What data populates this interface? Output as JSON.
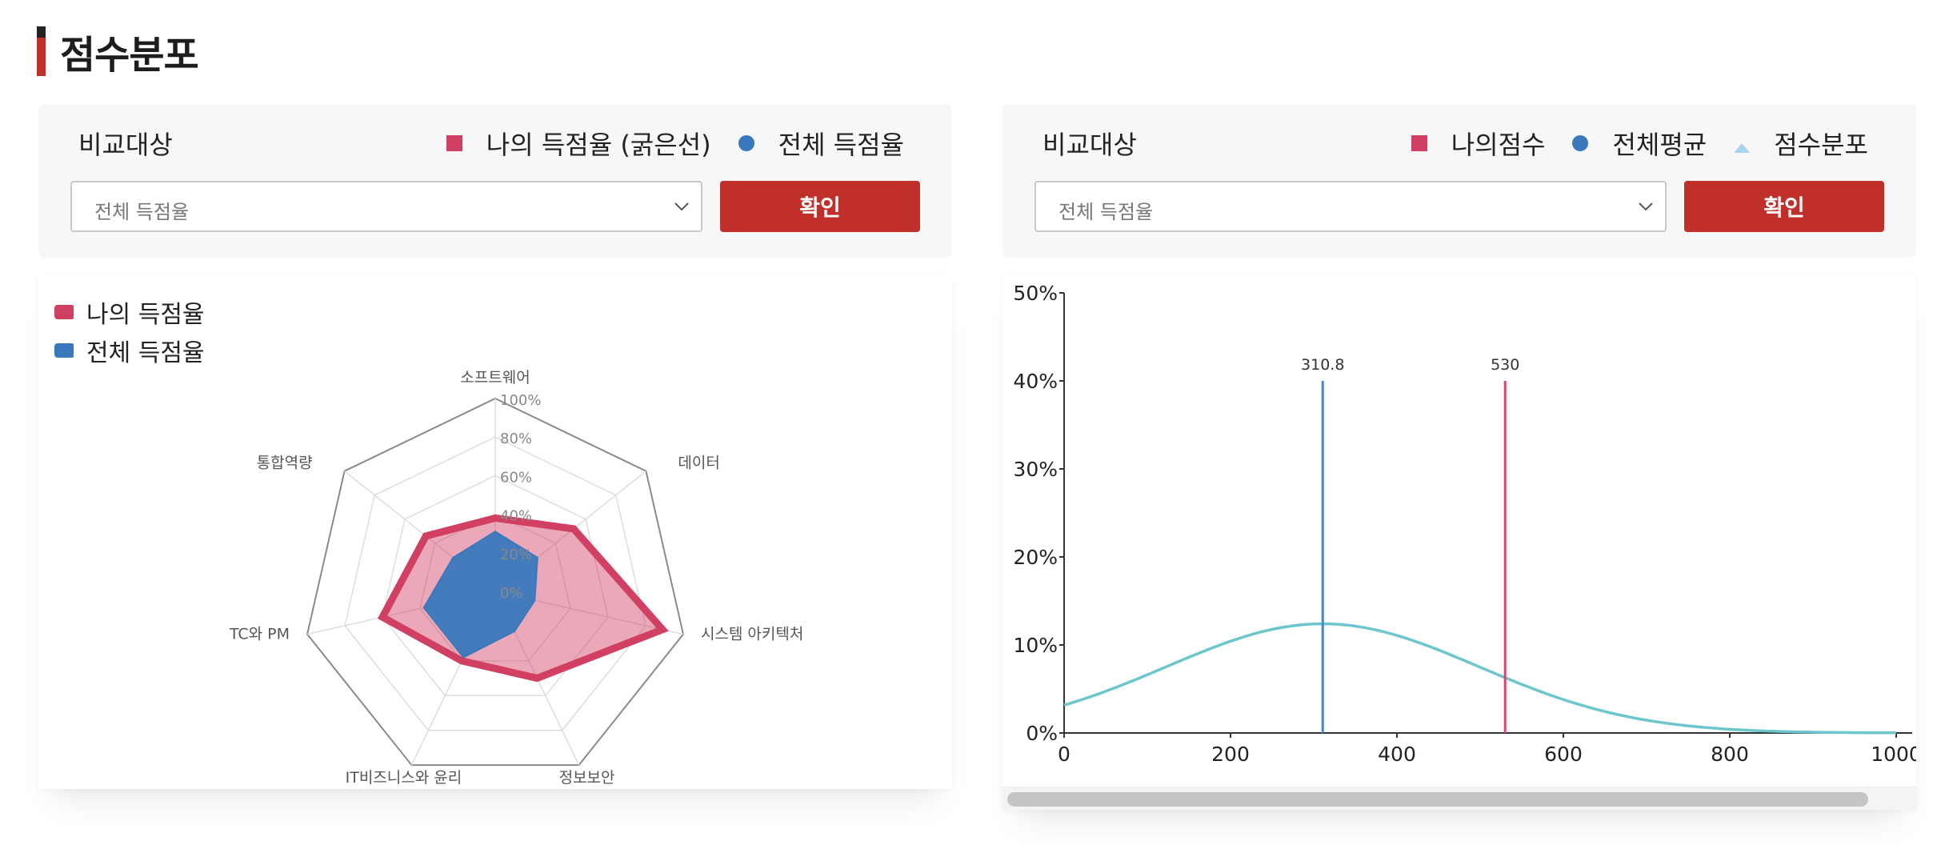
{
  "section_title": "점수분포",
  "left_panel": {
    "compare_label": "비교대상",
    "legend": [
      {
        "label": "나의 득점율 (굵은선)",
        "shape": "square",
        "color": "#d13f62"
      },
      {
        "label": "전체 득점율",
        "shape": "circle",
        "color": "#3a78bd"
      }
    ],
    "select_value": "전체 득점율",
    "confirm_label": "확인"
  },
  "right_panel": {
    "compare_label": "비교대상",
    "legend": [
      {
        "label": "나의점수",
        "shape": "square",
        "color": "#d13f62"
      },
      {
        "label": "전체평균",
        "shape": "circle",
        "color": "#3a78bd"
      },
      {
        "label": "점수분포",
        "shape": "triangle",
        "color": "#a8d3ea"
      }
    ],
    "select_value": "전체 득점율",
    "confirm_label": "확인"
  },
  "radar_legend": [
    {
      "label": "나의 득점율",
      "color": "#d13f62"
    },
    {
      "label": "전체 득점율",
      "color": "#3a78bd"
    }
  ],
  "chart_data": [
    {
      "type": "radar",
      "axes": [
        "소프트웨어",
        "데이터",
        "시스템 아키텍처",
        "정보보안",
        "IT비즈니스와 윤리",
        "TC와 PM",
        "통합역량"
      ],
      "radial_ticks": [
        "0%",
        "20%",
        "40%",
        "60%",
        "80%",
        "100%"
      ],
      "range": [
        0,
        100
      ],
      "series": [
        {
          "name": "나의 득점율",
          "values": [
            38,
            52,
            89,
            50,
            40,
            60,
            46
          ],
          "color": "#d13f62"
        },
        {
          "name": "전체 득점율",
          "values": [
            31,
            28,
            21,
            23,
            38,
            38,
            28
          ],
          "color": "#3a78bd"
        }
      ]
    },
    {
      "type": "line",
      "x_range": [
        0,
        1000
      ],
      "y_range": [
        0,
        50
      ],
      "x_ticks": [
        "0",
        "200",
        "400",
        "600",
        "800",
        "1000"
      ],
      "y_ticks": [
        "0%",
        "10%",
        "20%",
        "30%",
        "40%",
        "50%"
      ],
      "distribution": {
        "name": "점수분포",
        "mean": 310.8,
        "sd": 188,
        "peak_percent": 12.4,
        "color": "#6cc6cc"
      },
      "markers": [
        {
          "label": "310.8",
          "x": 310.8,
          "height_percent": 40,
          "color": "#4c84c2"
        },
        {
          "label": "530",
          "x": 530,
          "height_percent": 40,
          "color": "#d8456b"
        }
      ]
    }
  ]
}
